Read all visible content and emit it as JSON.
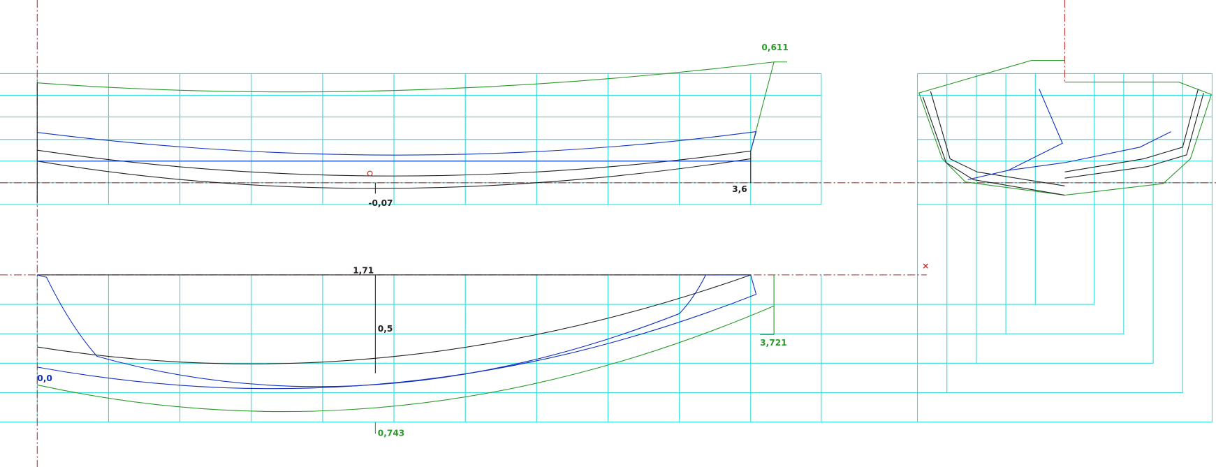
{
  "annotations": [
    "0,611",
    "-0,07",
    "3,6",
    "1,71",
    "0,5",
    "3,721",
    "0,0",
    "0,743"
  ]
}
